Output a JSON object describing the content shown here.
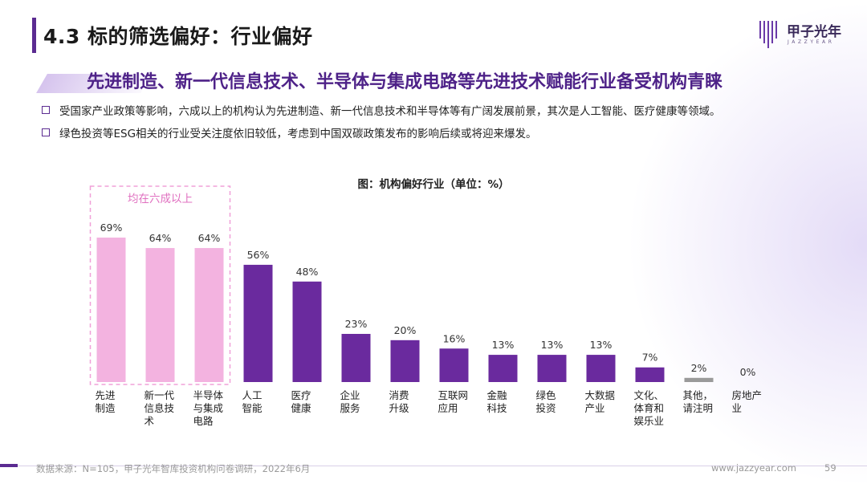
{
  "header": {
    "title": "4.3 标的筛选偏好：行业偏好",
    "subtitle": "先进制造、新一代信息技术、半导体与集成电路等先进技术赋能行业备受机构青睐"
  },
  "logo": {
    "name": "甲子光年",
    "tagline": "JAZZYEAR"
  },
  "bullets": [
    "受国家产业政策等影响，六成以上的机构认为先进制造、新一代信息技术和半导体等有广阔发展前景，其次是人工智能、医疗健康等领域。",
    "绿色投资等ESG相关的行业受关注度依旧较低，考虑到中国双碳政策发布的影响后续或将迎来爆发。"
  ],
  "chart_data": {
    "type": "bar",
    "title": "图：机构偏好行业（单位：%）",
    "categories": [
      [
        "先进",
        "制造"
      ],
      [
        "新一代",
        "信息技",
        "术"
      ],
      [
        "半导体",
        "与集成",
        "电路"
      ],
      [
        "人工",
        "智能"
      ],
      [
        "医疗",
        "健康"
      ],
      [
        "企业",
        "服务"
      ],
      [
        "消费",
        "升级"
      ],
      [
        "互联网",
        "应用"
      ],
      [
        "金融",
        "科技"
      ],
      [
        "绿色",
        "投资"
      ],
      [
        "大数据",
        "产业"
      ],
      [
        "文化、",
        "体育和",
        "娱乐业"
      ],
      [
        "其他，",
        "请注明"
      ],
      [
        "房地产",
        "业"
      ]
    ],
    "values": [
      69,
      64,
      64,
      56,
      48,
      23,
      20,
      16,
      13,
      13,
      13,
      7,
      2,
      0
    ],
    "value_labels": [
      "69%",
      "64%",
      "64%",
      "56%",
      "48%",
      "23%",
      "20%",
      "16%",
      "13%",
      "13%",
      "13%",
      "7%",
      "2%",
      "0%"
    ],
    "ylim": [
      0,
      75
    ],
    "highlight_indices": [
      0,
      1,
      2
    ],
    "highlight_label": "均在六成以上",
    "colors": {
      "highlight": "#f3b3e0",
      "default": "#6a2a9e",
      "other": "#9a9a9a",
      "highlight_box": "#f0a0d8",
      "highlight_text": "#e070c0"
    }
  },
  "footer": {
    "source": "数据来源：N=105，甲子光年智库投资机构问卷调研，2022年6月",
    "url": "www.jazzyear.com",
    "page": "59"
  }
}
